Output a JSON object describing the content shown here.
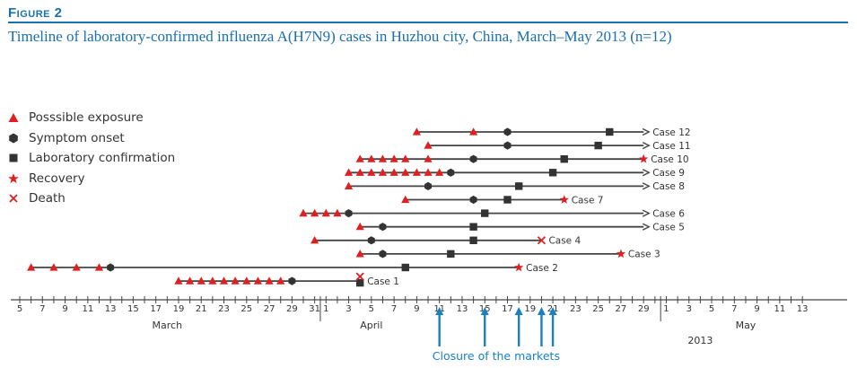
{
  "figure": {
    "label": "Figure 2",
    "title": "Timeline of laboratory-confirmed influenza A(H7N9) cases in Huzhou city, China, March–May 2013 (n=12)"
  },
  "legend": [
    {
      "key": "exposure",
      "label": "Posssible exposure",
      "symbol": "triangle",
      "color": "#e02020"
    },
    {
      "key": "onset",
      "label": "Symptom onset",
      "symbol": "hexagon",
      "color": "#333333"
    },
    {
      "key": "confirmation",
      "label": "Laboratory confirmation",
      "symbol": "square",
      "color": "#333333"
    },
    {
      "key": "recovery",
      "label": "Recovery",
      "symbol": "star",
      "color": "#e02020"
    },
    {
      "key": "death",
      "label": "Death",
      "symbol": "cross",
      "color": "#e02020"
    }
  ],
  "colors": {
    "title": "#1a6fad",
    "line": "#444444",
    "exposure": "#e02020",
    "marker": "#333333",
    "closure": "#1a80c4"
  },
  "chart_data": {
    "type": "timeline",
    "year": 2013,
    "x_start": "2013-03-05",
    "x_end": "2013-05-13",
    "xlim": [
      "2013-03-04",
      "2013-05-15"
    ],
    "ticks": [
      {
        "date": "2013-03-05",
        "label": "5"
      },
      {
        "date": "2013-03-07",
        "label": "7"
      },
      {
        "date": "2013-03-09",
        "label": "9"
      },
      {
        "date": "2013-03-11",
        "label": "11"
      },
      {
        "date": "2013-03-13",
        "label": "13"
      },
      {
        "date": "2013-03-15",
        "label": "15"
      },
      {
        "date": "2013-03-17",
        "label": "17"
      },
      {
        "date": "2013-03-19",
        "label": "19"
      },
      {
        "date": "2013-03-21",
        "label": "21"
      },
      {
        "date": "2013-03-23",
        "label": "23"
      },
      {
        "date": "2013-03-25",
        "label": "25"
      },
      {
        "date": "2013-03-27",
        "label": "27"
      },
      {
        "date": "2013-03-29",
        "label": "29"
      },
      {
        "date": "2013-03-31",
        "label": "31"
      },
      {
        "date": "2013-04-01",
        "label": "1"
      },
      {
        "date": "2013-04-03",
        "label": "3"
      },
      {
        "date": "2013-04-05",
        "label": "5"
      },
      {
        "date": "2013-04-07",
        "label": "7"
      },
      {
        "date": "2013-04-09",
        "label": "9"
      },
      {
        "date": "2013-04-11",
        "label": "11"
      },
      {
        "date": "2013-04-13",
        "label": "13"
      },
      {
        "date": "2013-04-15",
        "label": "15"
      },
      {
        "date": "2013-04-17",
        "label": "17"
      },
      {
        "date": "2013-04-19",
        "label": "19"
      },
      {
        "date": "2013-04-21",
        "label": "21"
      },
      {
        "date": "2013-04-23",
        "label": "23"
      },
      {
        "date": "2013-04-25",
        "label": "25"
      },
      {
        "date": "2013-04-27",
        "label": "27"
      },
      {
        "date": "2013-04-29",
        "label": "29"
      },
      {
        "date": "2013-05-01",
        "label": "1"
      },
      {
        "date": "2013-05-03",
        "label": "3"
      },
      {
        "date": "2013-05-05",
        "label": "5"
      },
      {
        "date": "2013-05-07",
        "label": "7"
      },
      {
        "date": "2013-05-09",
        "label": "9"
      },
      {
        "date": "2013-05-11",
        "label": "11"
      },
      {
        "date": "2013-05-13",
        "label": "13"
      }
    ],
    "month_dividers": [
      "2013-03-31T12:00",
      "2013-04-30T12:00"
    ],
    "months": [
      {
        "label": "March",
        "date": "2013-03-18"
      },
      {
        "label": "April",
        "date": "2013-04-05"
      },
      {
        "label": "2013",
        "date": "2013-05-04"
      },
      {
        "label": "May",
        "date": "2013-05-08"
      }
    ],
    "closure_label": "Closure of the markets",
    "closure_dates": [
      "2013-04-11",
      "2013-04-15",
      "2013-04-18",
      "2013-04-20",
      "2013-04-21"
    ],
    "cases": [
      {
        "label": "Case 12",
        "start": "2013-04-09",
        "end": "2013-04-29",
        "arrow": true,
        "exposure": [
          "2013-04-09",
          "2013-04-14"
        ],
        "onset": "2013-04-17",
        "confirmation": "2013-04-26"
      },
      {
        "label": "Case 11",
        "start": "2013-04-10",
        "end": "2013-04-29",
        "arrow": true,
        "exposure": [
          "2013-04-10"
        ],
        "onset": "2013-04-17",
        "confirmation": "2013-04-25"
      },
      {
        "label": "Case 10",
        "start": "2013-04-04",
        "end": "2013-04-29",
        "arrow": false,
        "exposure": [
          "2013-04-04",
          "2013-04-05",
          "2013-04-06",
          "2013-04-07",
          "2013-04-08",
          "2013-04-10"
        ],
        "onset": "2013-04-14",
        "confirmation": "2013-04-22",
        "recovery": "2013-04-29"
      },
      {
        "label": "Case 9",
        "start": "2013-04-03",
        "end": "2013-04-29",
        "arrow": true,
        "exposure": [
          "2013-04-03",
          "2013-04-04",
          "2013-04-05",
          "2013-04-06",
          "2013-04-07",
          "2013-04-08",
          "2013-04-09",
          "2013-04-10",
          "2013-04-11"
        ],
        "onset": "2013-04-12",
        "confirmation": "2013-04-21"
      },
      {
        "label": "Case 8",
        "start": "2013-04-03",
        "end": "2013-04-29",
        "arrow": true,
        "exposure": [
          "2013-04-03"
        ],
        "onset": "2013-04-10",
        "confirmation": "2013-04-18"
      },
      {
        "label": "Case 7",
        "start": "2013-04-08",
        "end": "2013-04-22",
        "arrow": false,
        "exposure": [
          "2013-04-08"
        ],
        "onset": "2013-04-14",
        "confirmation": "2013-04-17",
        "recovery": "2013-04-22"
      },
      {
        "label": "Case 6",
        "start": "2013-03-30",
        "end": "2013-04-29",
        "arrow": true,
        "exposure": [
          "2013-03-30",
          "2013-03-31",
          "2013-04-01",
          "2013-04-02"
        ],
        "onset": "2013-04-03",
        "confirmation": "2013-04-15"
      },
      {
        "label": "Case 5",
        "start": "2013-04-04",
        "end": "2013-04-29",
        "arrow": true,
        "exposure": [
          "2013-04-04"
        ],
        "onset": "2013-04-06",
        "confirmation": "2013-04-14"
      },
      {
        "label": "Case 4",
        "start": "2013-03-31",
        "end": "2013-04-20",
        "arrow": false,
        "exposure": [
          "2013-03-31"
        ],
        "onset": "2013-04-05",
        "confirmation": "2013-04-14",
        "death": "2013-04-20"
      },
      {
        "label": "Case 3",
        "start": "2013-04-04",
        "end": "2013-04-27",
        "arrow": false,
        "exposure": [
          "2013-04-04"
        ],
        "onset": "2013-04-06",
        "confirmation": "2013-04-12",
        "recovery": "2013-04-27"
      },
      {
        "label": "Case 2",
        "start": "2013-03-06",
        "end": "2013-04-18",
        "arrow": false,
        "exposure": [
          "2013-03-06",
          "2013-03-08",
          "2013-03-10",
          "2013-03-12"
        ],
        "onset": "2013-03-13",
        "confirmation": "2013-04-08",
        "recovery": "2013-04-18"
      },
      {
        "label": "Case 1",
        "start": "2013-03-19",
        "end": "2013-04-04",
        "arrow": false,
        "exposure": [
          "2013-03-19",
          "2013-03-20",
          "2013-03-21",
          "2013-03-22",
          "2013-03-23",
          "2013-03-24",
          "2013-03-25",
          "2013-03-26",
          "2013-03-27",
          "2013-03-28"
        ],
        "onset": "2013-03-29",
        "confirmation": "2013-04-04",
        "death": "2013-04-04"
      }
    ]
  }
}
